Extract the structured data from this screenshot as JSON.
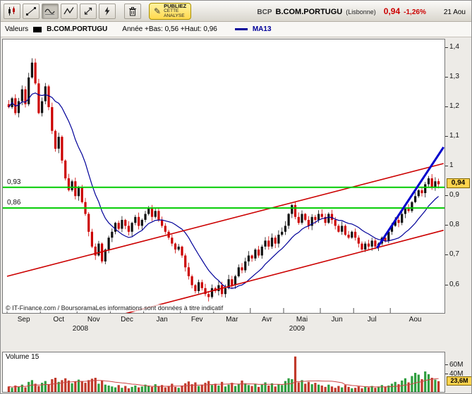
{
  "toolbar": {
    "tools": [
      {
        "name": "candlestick-chart-tool",
        "active": false
      },
      {
        "name": "trendline-tool",
        "active": false
      },
      {
        "name": "indicators-tool",
        "active": true
      },
      {
        "name": "zigzag-tool",
        "active": false
      },
      {
        "name": "pointer-tool",
        "active": false
      },
      {
        "name": "lightning-tool",
        "active": false
      },
      {
        "name": "trash-tool",
        "active": false
      }
    ],
    "publish_button": {
      "line1": "PUBLIEZ",
      "line2": "CETTE",
      "line3": "ANALYSE"
    }
  },
  "quote": {
    "symbol": "BCP",
    "name": "B.COM.PORTUGU",
    "exchange": "(Lisbonne)",
    "last": "0,94",
    "change": "-1,26%",
    "date": "21 Aou"
  },
  "legend": {
    "label": "Valeurs",
    "series_name": "B.COM.PORTUGU",
    "range_info": "Année +Bas: 0,56 +Haut: 0,96",
    "ma_label": "MA13"
  },
  "copyright": "© IT-Finance.com / BoursoramaLes informations sont données à titre indicatif",
  "colors": {
    "up_candle": "#111111",
    "down_candle": "#cc0000",
    "ma_line": "#000099",
    "level_line": "#00cc00",
    "channel_line": "#cc0000",
    "breakout_line": "#0000cc",
    "badge_bg": "#ffd34d",
    "price_red": "#cc0000",
    "volume_up": "#2f9e3f",
    "volume_down": "#c03a2b",
    "volume_ma": "#cc4444"
  },
  "chart_data": {
    "type": "candlestick",
    "title": "B.COM.PORTUGU (BCP, Lisbonne) - daily candles with MA13, ascending channel and volume",
    "ylim": [
      0.5,
      1.43
    ],
    "price_ticks": [
      {
        "label": "1,4",
        "value": 1.4
      },
      {
        "label": "1,3",
        "value": 1.3
      },
      {
        "label": "1,2",
        "value": 1.2
      },
      {
        "label": "1,1",
        "value": 1.1
      },
      {
        "label": "1",
        "value": 1.0
      },
      {
        "label": "0,9",
        "value": 0.9
      },
      {
        "label": "0,8",
        "value": 0.8
      },
      {
        "label": "0,7",
        "value": 0.7
      },
      {
        "label": "0,6",
        "value": 0.6
      }
    ],
    "price_badge": {
      "label": "0,94",
      "value": 0.94
    },
    "levels": [
      {
        "label": "0,93",
        "value": 0.93
      },
      {
        "label": "0,86",
        "value": 0.86
      }
    ],
    "months": [
      {
        "label": "Sep",
        "start": 0
      },
      {
        "label": "Oct",
        "start": 10
      },
      {
        "label": "Nov",
        "start": 21
      },
      {
        "label": "Dec",
        "start": 31
      },
      {
        "label": "Jan",
        "start": 41
      },
      {
        "label": "Fev",
        "start": 52
      },
      {
        "label": "Mar",
        "start": 62
      },
      {
        "label": "Avr",
        "start": 73
      },
      {
        "label": "Mai",
        "start": 83
      },
      {
        "label": "Jun",
        "start": 94
      },
      {
        "label": "Jul",
        "start": 104
      },
      {
        "label": "Aou",
        "start": 115
      }
    ],
    "end_index": 130,
    "years": [
      {
        "label": "2008",
        "index": 22
      },
      {
        "label": "2009",
        "index": 87
      }
    ],
    "closes": [
      1.2,
      1.23,
      1.18,
      1.22,
      1.26,
      1.21,
      1.3,
      1.35,
      1.28,
      1.18,
      1.22,
      1.27,
      1.2,
      1.12,
      1.06,
      1.1,
      1.02,
      0.96,
      0.92,
      0.95,
      0.9,
      0.93,
      0.88,
      0.84,
      0.78,
      0.73,
      0.7,
      0.74,
      0.68,
      0.72,
      0.76,
      0.78,
      0.81,
      0.79,
      0.82,
      0.8,
      0.78,
      0.81,
      0.83,
      0.8,
      0.82,
      0.84,
      0.86,
      0.83,
      0.85,
      0.82,
      0.8,
      0.78,
      0.76,
      0.74,
      0.72,
      0.73,
      0.7,
      0.66,
      0.63,
      0.6,
      0.58,
      0.61,
      0.59,
      0.57,
      0.56,
      0.59,
      0.58,
      0.6,
      0.57,
      0.59,
      0.62,
      0.6,
      0.63,
      0.66,
      0.65,
      0.68,
      0.7,
      0.69,
      0.72,
      0.7,
      0.73,
      0.75,
      0.73,
      0.76,
      0.74,
      0.77,
      0.78,
      0.8,
      0.84,
      0.87,
      0.83,
      0.81,
      0.84,
      0.82,
      0.8,
      0.83,
      0.82,
      0.84,
      0.83,
      0.81,
      0.84,
      0.82,
      0.8,
      0.78,
      0.8,
      0.77,
      0.76,
      0.78,
      0.76,
      0.74,
      0.72,
      0.74,
      0.73,
      0.75,
      0.73,
      0.74,
      0.76,
      0.75,
      0.78,
      0.8,
      0.82,
      0.81,
      0.84,
      0.86,
      0.85,
      0.88,
      0.9,
      0.92,
      0.91,
      0.94,
      0.96,
      0.93,
      0.95,
      0.94
    ],
    "volumes_millions": [
      12,
      9,
      14,
      11,
      16,
      10,
      22,
      26,
      18,
      13,
      20,
      24,
      17,
      28,
      31,
      22,
      26,
      30,
      25,
      19,
      23,
      27,
      24,
      20,
      26,
      29,
      31,
      18,
      25,
      16,
      14,
      12,
      10,
      15,
      9,
      13,
      8,
      11,
      14,
      10,
      12,
      16,
      13,
      11,
      17,
      12,
      15,
      10,
      13,
      18,
      11,
      9,
      14,
      19,
      23,
      17,
      21,
      13,
      16,
      20,
      24,
      15,
      18,
      14,
      22,
      12,
      16,
      20,
      13,
      17,
      25,
      19,
      15,
      13,
      18,
      11,
      16,
      21,
      14,
      19,
      12,
      17,
      15,
      24,
      30,
      28,
      78,
      21,
      26,
      18,
      22,
      17,
      20,
      16,
      14,
      11,
      16,
      12,
      9,
      13,
      10,
      15,
      11,
      8,
      9,
      12,
      8,
      11,
      10,
      13,
      9,
      12,
      15,
      11,
      14,
      18,
      22,
      17,
      25,
      30,
      21,
      35,
      42,
      38,
      28,
      45,
      39,
      31,
      27,
      23.6
    ],
    "trendlines": {
      "channel_upper": {
        "start_index": 0,
        "start_price": 0.63,
        "end_index": 131,
        "end_price": 1.01,
        "color": "#cc0000"
      },
      "channel_lower": {
        "start_index": 0,
        "start_price": 0.4,
        "end_index": 131,
        "end_price": 0.785,
        "color": "#cc0000"
      },
      "breakout": {
        "start_index": 111,
        "start_price": 0.725,
        "end_index": 131,
        "end_price": 1.065,
        "color": "#0000cc"
      }
    },
    "moving_average_period": 13,
    "volume_ma_period": 15,
    "volume_ticks": [
      {
        "label": "60M",
        "value": 60
      },
      {
        "label": "40M",
        "value": 40
      }
    ],
    "volume_badge": {
      "label": "23,6M",
      "value": 23.6
    },
    "volume_panel_label": "Volume 15",
    "year_low": 0.56,
    "year_high": 0.96,
    "last_close": 0.94,
    "last_volume_millions": 23.6
  }
}
